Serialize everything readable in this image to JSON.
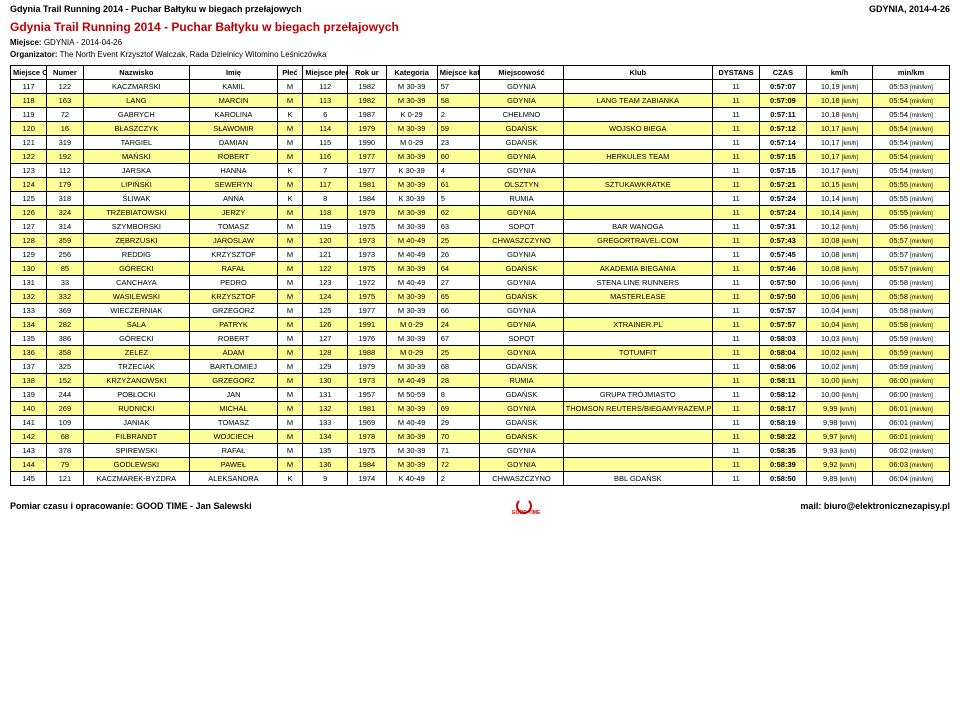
{
  "topbar": {
    "left": "Gdynia Trail Running 2014 - Puchar Bałtyku w biegach przełajowych",
    "right": "GDYNIA, 2014-4-26"
  },
  "title": "Gdynia Trail Running 2014 - Puchar Bałtyku w biegach przełajowych",
  "meta": {
    "miejsce_label": "Miejsce:",
    "miejsce_value": "GDYNIA - 2014-04-26",
    "org_label": "Organizator:",
    "org_value": "The North Event Krzysztof Walczak, Rada Dzielnicy Witomino Leśniczówka"
  },
  "headers": {
    "open": "Miejsce Open",
    "numer": "Numer",
    "nazwisko": "Nazwisko",
    "imie": "Imię",
    "plec": "Płeć",
    "mplec": "Miejsce płeć M / K",
    "rok": "Rok ur",
    "kategoria": "Kategoria",
    "mkat": "Miejsce kat. M / K",
    "miejscowosc": "Miejscowość",
    "klub": "Klub",
    "dystans": "DYSTANS",
    "czas": "CZAS",
    "kmh": "km/h",
    "minkm": "min/km"
  },
  "units": {
    "kmh": "[km/h]",
    "minkm": "[min/km]"
  },
  "rows": [
    {
      "hl": 0,
      "open": "117",
      "num": "122",
      "nazw": "KACZMARSKI",
      "imie": "KAMIL",
      "plec": "M",
      "mpl": "112",
      "rok": "1982",
      "kat": "M 30-39",
      "mkat": "57",
      "miej": "GDYNIA",
      "klub": "",
      "dys": "11",
      "czas": "0:57:07",
      "kmh": "10,19",
      "min": "05:53"
    },
    {
      "hl": 1,
      "open": "118",
      "num": "163",
      "nazw": "LANG",
      "imie": "MARCIN",
      "plec": "M",
      "mpl": "113",
      "rok": "1982",
      "kat": "M 30-39",
      "mkat": "58",
      "miej": "GDYNIA",
      "klub": "LANG TEAM ZABIANKA",
      "dys": "11",
      "czas": "0:57:09",
      "kmh": "10,18",
      "min": "05:54"
    },
    {
      "hl": 0,
      "open": "119",
      "num": "72",
      "nazw": "GABRYCH",
      "imie": "KAROLINA",
      "plec": "K",
      "mpl": "6",
      "rok": "1987",
      "kat": "K 0-29",
      "mkat": "2",
      "miej": "CHEŁMNO",
      "klub": "",
      "dys": "11",
      "czas": "0:57:11",
      "kmh": "10,18",
      "min": "05:54"
    },
    {
      "hl": 1,
      "open": "120",
      "num": "16",
      "nazw": "BŁASZCZYK",
      "imie": "SŁAWOMIR",
      "plec": "M",
      "mpl": "114",
      "rok": "1979",
      "kat": "M 30-39",
      "mkat": "59",
      "miej": "GDAŃSK",
      "klub": "WOJSKO BIEGA",
      "dys": "11",
      "czas": "0:57:12",
      "kmh": "10,17",
      "min": "05:54"
    },
    {
      "hl": 0,
      "open": "121",
      "num": "319",
      "nazw": "TARGIEL",
      "imie": "DAMIAN",
      "plec": "M",
      "mpl": "115",
      "rok": "1990",
      "kat": "M 0-29",
      "mkat": "23",
      "miej": "GDAŃSK",
      "klub": "",
      "dys": "11",
      "czas": "0:57:14",
      "kmh": "10,17",
      "min": "05:54"
    },
    {
      "hl": 1,
      "open": "122",
      "num": "192",
      "nazw": "MAŃSKI",
      "imie": "ROBERT",
      "plec": "M",
      "mpl": "116",
      "rok": "1977",
      "kat": "M 30-39",
      "mkat": "60",
      "miej": "GDYNIA",
      "klub": "HERKULES TEAM",
      "dys": "11",
      "czas": "0:57:15",
      "kmh": "10,17",
      "min": "05:54"
    },
    {
      "hl": 0,
      "open": "123",
      "num": "112",
      "nazw": "JARSKA",
      "imie": "HANNA",
      "plec": "K",
      "mpl": "7",
      "rok": "1977",
      "kat": "K 30-39",
      "mkat": "4",
      "miej": "GDYNIA",
      "klub": "",
      "dys": "11",
      "czas": "0:57:15",
      "kmh": "10,17",
      "min": "05:54"
    },
    {
      "hl": 1,
      "open": "124",
      "num": "179",
      "nazw": "LIPIŃSKI",
      "imie": "SEWERYN",
      "plec": "M",
      "mpl": "117",
      "rok": "1981",
      "kat": "M 30-39",
      "mkat": "61",
      "miej": "OLSZTYN",
      "klub": "SZTUKAWKRATKE",
      "dys": "11",
      "czas": "0:57:21",
      "kmh": "10,15",
      "min": "05:55"
    },
    {
      "hl": 0,
      "open": "125",
      "num": "318",
      "nazw": "ŚLIWAK",
      "imie": "ANNA",
      "plec": "K",
      "mpl": "8",
      "rok": "1984",
      "kat": "K 30-39",
      "mkat": "5",
      "miej": "RUMIA",
      "klub": "",
      "dys": "11",
      "czas": "0:57:24",
      "kmh": "10,14",
      "min": "05:55"
    },
    {
      "hl": 1,
      "open": "126",
      "num": "324",
      "nazw": "TRZEBIATOWSKI",
      "imie": "JERZY",
      "plec": "M",
      "mpl": "118",
      "rok": "1979",
      "kat": "M 30-39",
      "mkat": "62",
      "miej": "GDYNIA",
      "klub": "",
      "dys": "11",
      "czas": "0:57:24",
      "kmh": "10,14",
      "min": "05:55"
    },
    {
      "hl": 0,
      "open": "127",
      "num": "314",
      "nazw": "SZYMBORSKI",
      "imie": "TOMASZ",
      "plec": "M",
      "mpl": "119",
      "rok": "1975",
      "kat": "M 30-39",
      "mkat": "63",
      "miej": "SOPOT",
      "klub": "BAR WANOGA",
      "dys": "11",
      "czas": "0:57:31",
      "kmh": "10,12",
      "min": "05:56"
    },
    {
      "hl": 1,
      "open": "128",
      "num": "359",
      "nazw": "ZĘBRZUSKI",
      "imie": "JAROSLAW",
      "plec": "M",
      "mpl": "120",
      "rok": "1973",
      "kat": "M 40-49",
      "mkat": "25",
      "miej": "CHWASZCZYNO",
      "klub": "GREGORTRAVEL.COM",
      "dys": "11",
      "czas": "0:57:43",
      "kmh": "10,08",
      "min": "05:57"
    },
    {
      "hl": 0,
      "open": "129",
      "num": "256",
      "nazw": "REDDIG",
      "imie": "KRZYSZTOF",
      "plec": "M",
      "mpl": "121",
      "rok": "1973",
      "kat": "M 40-49",
      "mkat": "26",
      "miej": "GDYNIA",
      "klub": "",
      "dys": "11",
      "czas": "0:57:45",
      "kmh": "10,08",
      "min": "05:57"
    },
    {
      "hl": 1,
      "open": "130",
      "num": "85",
      "nazw": "GÓRECKI",
      "imie": "RAFAŁ",
      "plec": "M",
      "mpl": "122",
      "rok": "1975",
      "kat": "M 30-39",
      "mkat": "64",
      "miej": "GDAŃSK",
      "klub": "AKADEMIA BIEGANIA",
      "dys": "11",
      "czas": "0:57:46",
      "kmh": "10,08",
      "min": "05:57"
    },
    {
      "hl": 0,
      "open": "131",
      "num": "33",
      "nazw": "CANCHAYA",
      "imie": "PEDRO",
      "plec": "M",
      "mpl": "123",
      "rok": "1972",
      "kat": "M 40-49",
      "mkat": "27",
      "miej": "GDYNIA",
      "klub": "STENA LINE RUNNERS",
      "dys": "11",
      "czas": "0:57:50",
      "kmh": "10,06",
      "min": "05:58"
    },
    {
      "hl": 1,
      "open": "132",
      "num": "332",
      "nazw": "WASILEWSKI",
      "imie": "KRZYSZTOF",
      "plec": "M",
      "mpl": "124",
      "rok": "1975",
      "kat": "M 30-39",
      "mkat": "65",
      "miej": "GDAŃSK",
      "klub": "MASTERLEASE",
      "dys": "11",
      "czas": "0:57:50",
      "kmh": "10,06",
      "min": "05:58"
    },
    {
      "hl": 0,
      "open": "133",
      "num": "369",
      "nazw": "WIECZERNIAK",
      "imie": "GRZEGORZ",
      "plec": "M",
      "mpl": "125",
      "rok": "1977",
      "kat": "M 30-39",
      "mkat": "66",
      "miej": "GDYNIA",
      "klub": "",
      "dys": "11",
      "czas": "0:57:57",
      "kmh": "10,04",
      "min": "05:58"
    },
    {
      "hl": 1,
      "open": "134",
      "num": "282",
      "nazw": "SALA",
      "imie": "PATRYK",
      "plec": "M",
      "mpl": "126",
      "rok": "1991",
      "kat": "M 0-29",
      "mkat": "24",
      "miej": "GDYNIA",
      "klub": "XTRAINER.PL",
      "dys": "11",
      "czas": "0:57:57",
      "kmh": "10,04",
      "min": "05:58"
    },
    {
      "hl": 0,
      "open": "135",
      "num": "386",
      "nazw": "GÓRECKI",
      "imie": "ROBERT",
      "plec": "M",
      "mpl": "127",
      "rok": "1976",
      "kat": "M 30-39",
      "mkat": "67",
      "miej": "SOPOT",
      "klub": "",
      "dys": "11",
      "czas": "0:58:03",
      "kmh": "10,03",
      "min": "05:59"
    },
    {
      "hl": 1,
      "open": "136",
      "num": "358",
      "nazw": "ZELEZ",
      "imie": "ADAM",
      "plec": "M",
      "mpl": "128",
      "rok": "1988",
      "kat": "M 0-29",
      "mkat": "25",
      "miej": "GDYNIA",
      "klub": "TOTUMFIT",
      "dys": "11",
      "czas": "0:58:04",
      "kmh": "10,02",
      "min": "05:59"
    },
    {
      "hl": 0,
      "open": "137",
      "num": "325",
      "nazw": "TRZECIAK",
      "imie": "BARTŁOMIEJ",
      "plec": "M",
      "mpl": "129",
      "rok": "1979",
      "kat": "M 30-39",
      "mkat": "68",
      "miej": "GDAŃSK",
      "klub": "",
      "dys": "11",
      "czas": "0:58:06",
      "kmh": "10,02",
      "min": "05:59"
    },
    {
      "hl": 1,
      "open": "138",
      "num": "152",
      "nazw": "KRZYŻANOWSKI",
      "imie": "GRZEGORZ",
      "plec": "M",
      "mpl": "130",
      "rok": "1973",
      "kat": "M 40-49",
      "mkat": "28",
      "miej": "RUMIA",
      "klub": "",
      "dys": "11",
      "czas": "0:58:11",
      "kmh": "10,00",
      "min": "06:00"
    },
    {
      "hl": 0,
      "open": "139",
      "num": "244",
      "nazw": "POBŁOCKI",
      "imie": "JAN",
      "plec": "M",
      "mpl": "131",
      "rok": "1957",
      "kat": "M 50-59",
      "mkat": "8",
      "miej": "GDAŃSK",
      "klub": "GRUPA TRÓJMIASTO",
      "dys": "11",
      "czas": "0:58:12",
      "kmh": "10,00",
      "min": "06:00"
    },
    {
      "hl": 1,
      "open": "140",
      "num": "269",
      "nazw": "RUDNICKI",
      "imie": "MICHAŁ",
      "plec": "M",
      "mpl": "132",
      "rok": "1981",
      "kat": "M 30-39",
      "mkat": "69",
      "miej": "GDYNIA",
      "klub": "THOMSON REUTERS/BIEGAMYRAZEM.PL",
      "dys": "11",
      "czas": "0:58:17",
      "kmh": "9,99",
      "min": "06:01"
    },
    {
      "hl": 0,
      "open": "141",
      "num": "109",
      "nazw": "JANIAK",
      "imie": "TOMASZ",
      "plec": "M",
      "mpl": "133",
      "rok": "1969",
      "kat": "M 40-49",
      "mkat": "29",
      "miej": "GDAŃSK",
      "klub": "",
      "dys": "11",
      "czas": "0:58:19",
      "kmh": "9,98",
      "min": "06:01"
    },
    {
      "hl": 1,
      "open": "142",
      "num": "68",
      "nazw": "FILBRANDT",
      "imie": "WOJCIECH",
      "plec": "M",
      "mpl": "134",
      "rok": "1978",
      "kat": "M 30-39",
      "mkat": "70",
      "miej": "GDAŃSK",
      "klub": "",
      "dys": "11",
      "czas": "0:58:22",
      "kmh": "9,97",
      "min": "06:01"
    },
    {
      "hl": 0,
      "open": "143",
      "num": "378",
      "nazw": "SPIREWSKI",
      "imie": "RAFAŁ",
      "plec": "M",
      "mpl": "135",
      "rok": "1975",
      "kat": "M 30-39",
      "mkat": "71",
      "miej": "GDYNIA",
      "klub": "",
      "dys": "11",
      "czas": "0:58:35",
      "kmh": "9,93",
      "min": "06:02"
    },
    {
      "hl": 1,
      "open": "144",
      "num": "79",
      "nazw": "GODLEWSKI",
      "imie": "PAWEŁ",
      "plec": "M",
      "mpl": "136",
      "rok": "1984",
      "kat": "M 30-39",
      "mkat": "72",
      "miej": "GDYNIA",
      "klub": "",
      "dys": "11",
      "czas": "0:58:39",
      "kmh": "9,92",
      "min": "06:03"
    },
    {
      "hl": 0,
      "open": "145",
      "num": "121",
      "nazw": "KACZMAREK-BYZDRA",
      "imie": "ALEKSANDRA",
      "plec": "K",
      "mpl": "9",
      "rok": "1974",
      "kat": "K 40-49",
      "mkat": "2",
      "miej": "CHWASZCZYNO",
      "klub": "BBL GDAŃSK",
      "dys": "11",
      "czas": "0:58:50",
      "kmh": "9,89",
      "min": "06:04"
    }
  ],
  "footer": {
    "left": "Pomiar czasu i opracowanie: GOOD TIME - Jan Salewski",
    "right": "mail: biuro@elektronicznezapisy.pl",
    "logo_text": "GOOD TIME"
  },
  "colors": {
    "highlight": "#ffff99",
    "title": "#c00000"
  }
}
